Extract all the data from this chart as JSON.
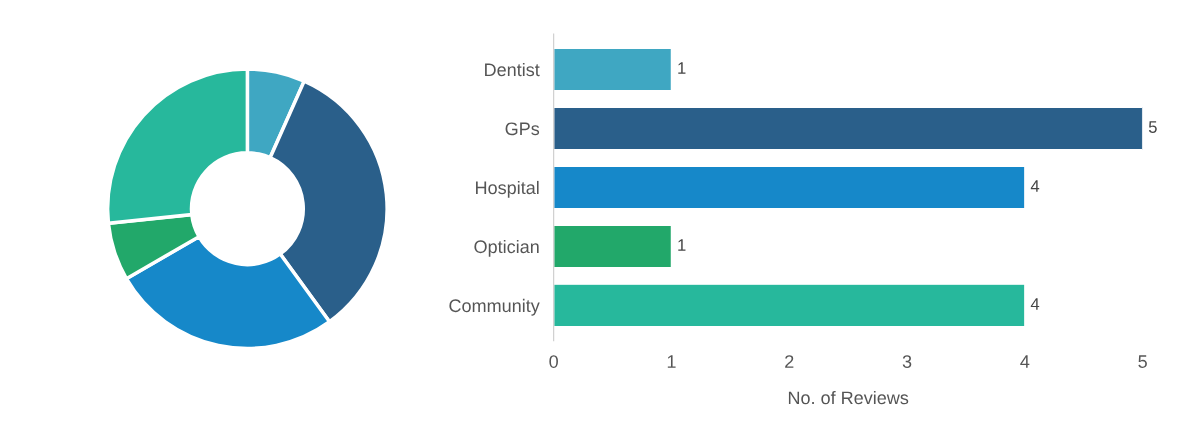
{
  "chart_data": [
    {
      "type": "donut",
      "categories": [
        null,
        null,
        null,
        null,
        null
      ],
      "values": [
        6.67,
        33.33,
        26.67,
        6.67,
        26.67
      ],
      "colors": [
        "#3fa7c2",
        "#2a5f8a",
        "#1688c9",
        "#22a86a",
        "#27b89c"
      ]
    },
    {
      "type": "bar",
      "orientation": "horizontal",
      "categories": [
        "Dentist",
        "GPs",
        "Hospital",
        "Optician",
        "Community"
      ],
      "values": [
        1,
        5,
        4,
        1,
        4
      ],
      "colors": [
        "#3fa7c2",
        "#2a5f8a",
        "#1688c9",
        "#22a86a",
        "#27b89c"
      ],
      "xlabel": "No. of Reviews",
      "xlim": [
        0,
        5
      ],
      "xticks": [
        0,
        1,
        2,
        3,
        4,
        5
      ],
      "data_labels": true,
      "grid": false
    }
  ]
}
